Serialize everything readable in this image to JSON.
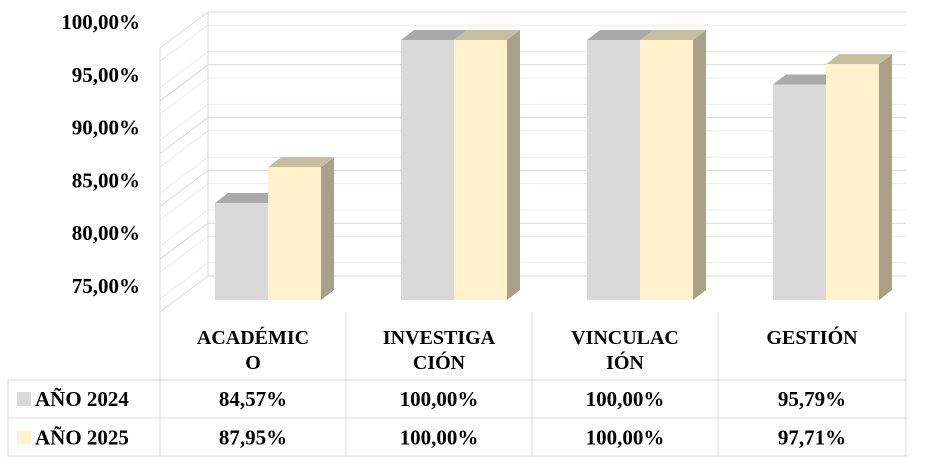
{
  "chart_data": {
    "type": "bar",
    "title": "",
    "xlabel": "",
    "ylabel": "",
    "categories": [
      "ACADÉMICO",
      "INVESTIGACIÓN",
      "VINCULACIÓN",
      "GESTIÓN"
    ],
    "category_label_lines": [
      [
        "ACADÉMIC",
        "O"
      ],
      [
        "INVESTIGA",
        "CIÓN"
      ],
      [
        "VINCULAC",
        "IÓN"
      ],
      [
        "GESTIÓN"
      ]
    ],
    "series": [
      {
        "name": "AÑO 2024",
        "values": [
          84.57,
          100.0,
          100.0,
          95.79
        ],
        "labels": [
          "84,57%",
          "100,00%",
          "100,00%",
          "95,79%"
        ],
        "color": "#d9d9d9"
      },
      {
        "name": "AÑO 2025",
        "values": [
          87.95,
          100.0,
          100.0,
          97.71
        ],
        "labels": [
          "87,95%",
          "100,00%",
          "100,00%",
          "97,71%"
        ],
        "color": "#fff2cc"
      }
    ],
    "ylim": [
      75,
      100
    ],
    "yticks": [
      75,
      80,
      85,
      90,
      95,
      100
    ],
    "ytick_labels": [
      "75,00%",
      "80,00%",
      "85,00%",
      "90,00%",
      "95,00%",
      "100,00%"
    ],
    "grid": true,
    "data_table": true,
    "style": "3d-clustered-column"
  }
}
